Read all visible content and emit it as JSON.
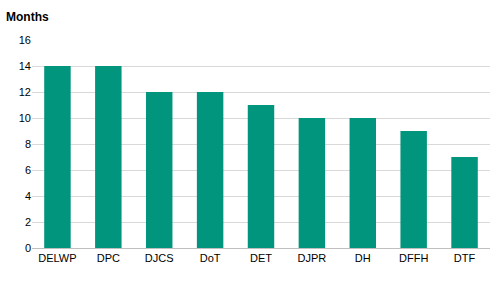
{
  "chart_data": {
    "type": "bar",
    "ylabel": "Months",
    "categories": [
      "DELWP",
      "DPC",
      "DJCS",
      "DoT",
      "DET",
      "DJPR",
      "DH",
      "DFFH",
      "DTF"
    ],
    "values": [
      14,
      14,
      12,
      12,
      11,
      10,
      10,
      9,
      7
    ],
    "color": "#00957c",
    "ylim": [
      0,
      16
    ],
    "yticks": [
      0,
      2,
      4,
      6,
      8,
      10,
      12,
      14,
      16
    ],
    "grid": true
  }
}
